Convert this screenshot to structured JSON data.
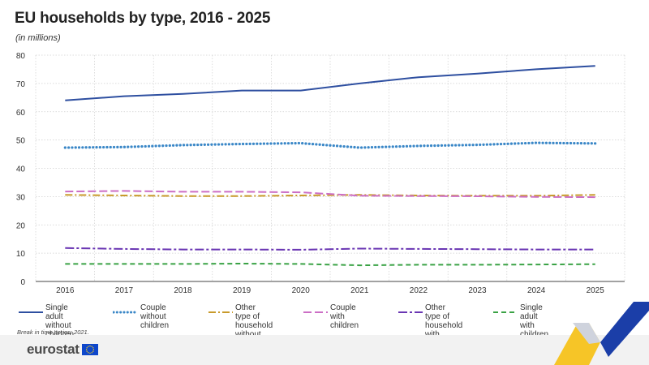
{
  "header": {
    "title": "EU households by type, 2016 - 2025",
    "subtitle": "(in millions)"
  },
  "note": "Break in time series: 2021.",
  "footer": {
    "logo_text": "eurostat",
    "flag_icon": "eu-flag-icon"
  },
  "colors": {
    "dark_blue": "#2e4fa0",
    "light_blue": "#3a87c7",
    "gold": "#c89a2a",
    "pink": "#cc6ec5",
    "purple": "#6a36b3",
    "green": "#3aa245",
    "grid": "#cfcfcf",
    "deco_yellow": "#f6c21b",
    "deco_blue": "#1b3ea8"
  },
  "chart_data": {
    "type": "line",
    "x": [
      "2016",
      "2017",
      "2018",
      "2019",
      "2020",
      "2021",
      "2022",
      "2023",
      "2024",
      "2025"
    ],
    "ylim": [
      0,
      80
    ],
    "yticks": [
      0,
      10,
      20,
      30,
      40,
      50,
      60,
      70,
      80
    ],
    "grid": true,
    "legend_position": "bottom",
    "series": [
      {
        "name": "Single adult\nwithout children",
        "values": [
          64.0,
          65.5,
          66.3,
          67.5,
          67.5,
          70.0,
          72.2,
          73.5,
          75.0,
          76.2
        ],
        "color": "#2e4fa0",
        "dash": "solid"
      },
      {
        "name": "Couple\nwithout children",
        "values": [
          47.3,
          47.5,
          48.2,
          48.6,
          48.9,
          47.3,
          47.9,
          48.3,
          49.0,
          48.8
        ],
        "color": "#3a87c7",
        "dash": "dotted"
      },
      {
        "name": "Other type of household\nwithout children",
        "values": [
          30.6,
          30.4,
          30.2,
          30.2,
          30.4,
          30.6,
          30.4,
          30.3,
          30.3,
          30.6
        ],
        "color": "#c89a2a",
        "dash": "dashdot"
      },
      {
        "name": "Couple\nwith children",
        "values": [
          31.8,
          32.0,
          31.7,
          31.7,
          31.5,
          30.3,
          30.2,
          30.1,
          29.9,
          29.8
        ],
        "color": "#cc6ec5",
        "dash": "longdash"
      },
      {
        "name": "Other type of household\nwith children",
        "values": [
          11.8,
          11.5,
          11.3,
          11.3,
          11.2,
          11.6,
          11.5,
          11.4,
          11.3,
          11.3
        ],
        "color": "#6a36b3",
        "dash": "dashdot2"
      },
      {
        "name": "Single adult\nwith children",
        "values": [
          6.2,
          6.2,
          6.2,
          6.3,
          6.2,
          5.7,
          5.9,
          5.9,
          6.0,
          6.1
        ],
        "color": "#3aa245",
        "dash": "dashed"
      }
    ]
  }
}
